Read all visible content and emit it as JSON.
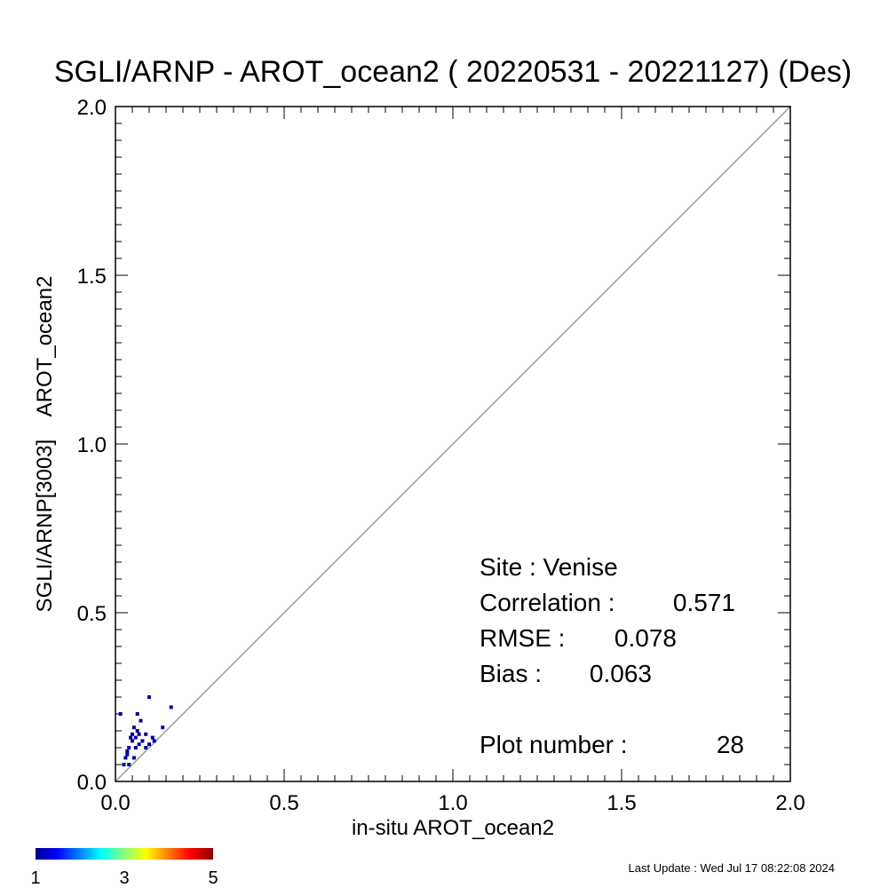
{
  "chart_data": {
    "type": "scatter",
    "title": "SGLI/ARNP - AROT_ocean2 ( 20220531 - 20221127) (Des)",
    "xlabel": "in-situ AROT_ocean2",
    "ylabel": "SGLI/ARNP[3003]    AROT_ocean2",
    "xlim": [
      0.0,
      2.0
    ],
    "ylim": [
      0.0,
      2.0
    ],
    "x_ticks": [
      "0.0",
      "0.5",
      "1.0",
      "1.5",
      "2.0"
    ],
    "y_ticks": [
      "0.0",
      "0.5",
      "1.0",
      "1.5",
      "2.0"
    ],
    "grid": false,
    "reference_line": "1:1",
    "point_color": "#0000a0",
    "line_color": "#999999",
    "points": [
      {
        "x": 0.015,
        "y": 0.2
      },
      {
        "x": 0.025,
        "y": 0.05
      },
      {
        "x": 0.03,
        "y": 0.07
      },
      {
        "x": 0.035,
        "y": 0.09
      },
      {
        "x": 0.035,
        "y": 0.08
      },
      {
        "x": 0.04,
        "y": 0.05
      },
      {
        "x": 0.045,
        "y": 0.13
      },
      {
        "x": 0.05,
        "y": 0.14
      },
      {
        "x": 0.055,
        "y": 0.16
      },
      {
        "x": 0.06,
        "y": 0.1
      },
      {
        "x": 0.06,
        "y": 0.13
      },
      {
        "x": 0.065,
        "y": 0.2
      },
      {
        "x": 0.065,
        "y": 0.15
      },
      {
        "x": 0.07,
        "y": 0.14
      },
      {
        "x": 0.075,
        "y": 0.18
      },
      {
        "x": 0.08,
        "y": 0.12
      },
      {
        "x": 0.09,
        "y": 0.14
      },
      {
        "x": 0.1,
        "y": 0.25
      },
      {
        "x": 0.1,
        "y": 0.11
      },
      {
        "x": 0.11,
        "y": 0.13
      },
      {
        "x": 0.115,
        "y": 0.12
      },
      {
        "x": 0.14,
        "y": 0.16
      },
      {
        "x": 0.165,
        "y": 0.22
      },
      {
        "x": 0.05,
        "y": 0.12
      },
      {
        "x": 0.04,
        "y": 0.1
      },
      {
        "x": 0.055,
        "y": 0.07
      },
      {
        "x": 0.07,
        "y": 0.11
      },
      {
        "x": 0.09,
        "y": 0.1
      }
    ],
    "stats": [
      {
        "label": "Site : Venise",
        "value": ""
      },
      {
        "label": "Correlation :",
        "value": "0.571"
      },
      {
        "label": "RMSE :",
        "value": "0.078"
      },
      {
        "label": "Bias :",
        "value": "0.063"
      },
      {
        "label": "Plot number :",
        "value": "28"
      }
    ],
    "colorbar": {
      "labels": [
        "1",
        "3",
        "5"
      ],
      "colors": [
        "#00008f",
        "#0000ff",
        "#00ffff",
        "#ffff00",
        "#ff0000",
        "#8f0000"
      ]
    }
  },
  "footer": {
    "last_update": "Last Update : Wed Jul 17 08:22:08 2024"
  }
}
